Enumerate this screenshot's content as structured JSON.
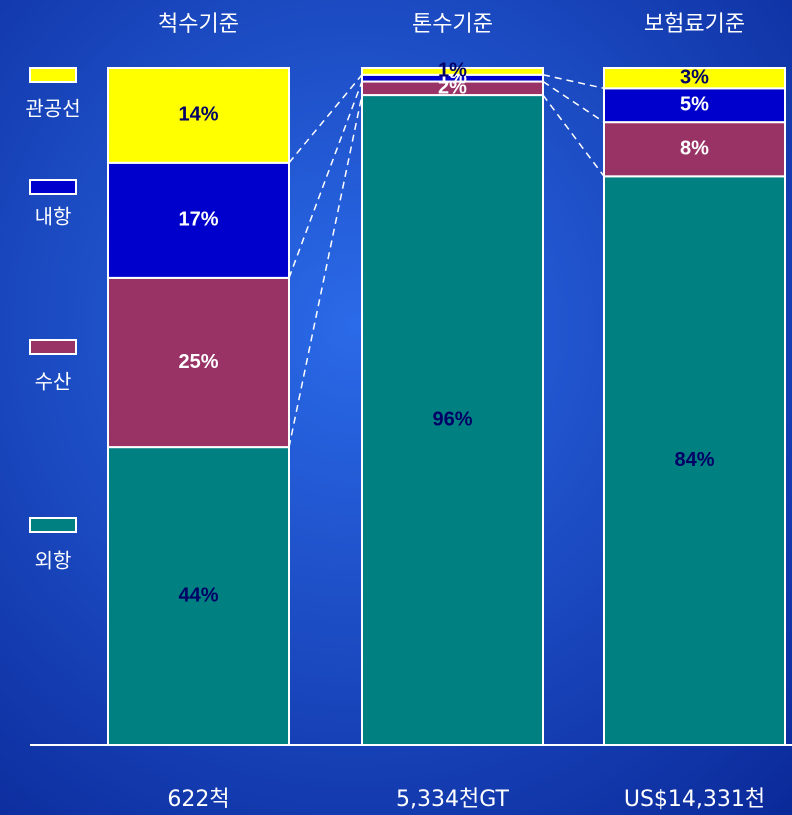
{
  "chart_data": {
    "type": "stacked_bar",
    "categories": [
      "척수기준",
      "톤수기준",
      "보험료기준"
    ],
    "totals": [
      "622척",
      "5,334천GT",
      "US$14,331천"
    ],
    "ylim": [
      0,
      100
    ],
    "series": [
      {
        "name": "외항",
        "color": "#008080",
        "values": [
          44,
          96,
          84
        ],
        "value_labels": [
          "44%",
          "96%",
          "84%"
        ]
      },
      {
        "name": "수산",
        "color": "#993366",
        "values": [
          25,
          2,
          8
        ],
        "value_labels": [
          "25%",
          "2%",
          "8%"
        ]
      },
      {
        "name": "내항",
        "color": "#0000cc",
        "values": [
          17,
          1,
          5
        ],
        "value_labels": [
          "17%",
          "1%",
          "5%"
        ]
      },
      {
        "name": "관공선",
        "color": "#ffff00",
        "values": [
          14,
          1,
          3
        ],
        "value_labels": [
          "14%",
          "1%",
          "3%"
        ]
      }
    ]
  }
}
